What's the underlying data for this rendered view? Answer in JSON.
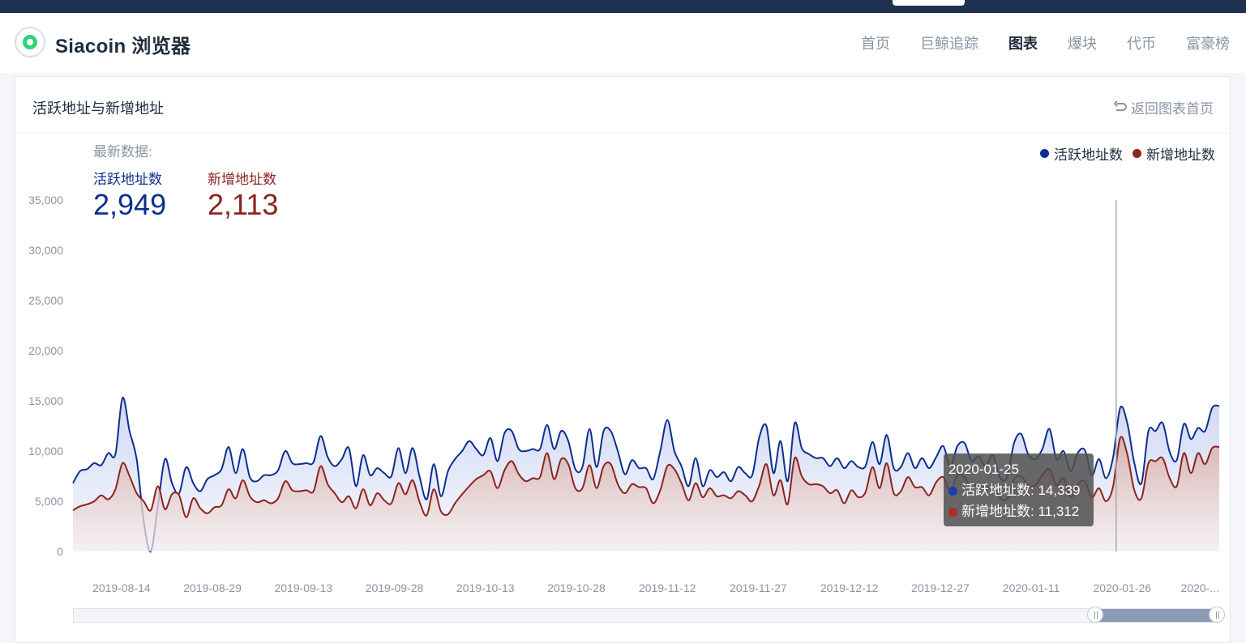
{
  "header": {
    "brand": "Siacoin 浏览器",
    "nav": [
      "首页",
      "巨鲸追踪",
      "图表",
      "爆块",
      "代币",
      "富豪榜"
    ],
    "active_nav": "图表"
  },
  "card": {
    "title": "活跃地址与新增地址",
    "back_label": "返回图表首页",
    "latest_label": "最新数据:",
    "active_label": "活跃地址数",
    "active_value": "2,949",
    "new_label": "新增地址数",
    "new_value": "2,113"
  },
  "legend": [
    "活跃地址数",
    "新增地址数"
  ],
  "tooltip": {
    "date": "2020-01-25",
    "active_text": "活跃地址数: 14,339",
    "new_text": "新增地址数: 11,312"
  },
  "colors": {
    "active": "#0d2f8c",
    "new": "#8c241f",
    "nav_dark": "#1f3350"
  },
  "chart_data": {
    "type": "area",
    "y_ticks": [
      0,
      5000,
      10000,
      15000,
      20000,
      25000,
      30000,
      35000
    ],
    "y_tick_labels": [
      "0",
      "5,000",
      "10,000",
      "15,000",
      "20,000",
      "25,000",
      "30,000",
      "35,000"
    ],
    "ylim": [
      0,
      35000
    ],
    "x_start": "2019-08-06",
    "x_end": "2020-02-01",
    "x_tick_labels": [
      "2019-08-14",
      "2019-08-29",
      "2019-09-13",
      "2019-09-28",
      "2019-10-13",
      "2019-10-28",
      "2019-11-12",
      "2019-11-27",
      "2019-12-12",
      "2019-12-27",
      "2020-01-11",
      "2020-01-26",
      "2020-..."
    ],
    "x_tick_days": [
      8,
      23,
      38,
      53,
      68,
      83,
      98,
      113,
      128,
      143,
      158,
      173,
      188
    ],
    "x_days_total": 189,
    "cursor_day": 172,
    "series": [
      {
        "name": "活跃地址数",
        "values": [
          6800,
          8000,
          8200,
          8800,
          8600,
          9800,
          9700,
          15300,
          12000,
          9200,
          3000,
          0,
          4500,
          9200,
          6800,
          5800,
          8400,
          6800,
          6000,
          7200,
          7600,
          8200,
          10400,
          7800,
          10200,
          7400,
          7000,
          7600,
          7600,
          8100,
          10000,
          8800,
          8700,
          8800,
          8900,
          11500,
          9400,
          8500,
          9200,
          10300,
          6500,
          9600,
          7600,
          8300,
          7800,
          7500,
          10300,
          7800,
          10300,
          7400,
          5200,
          8700,
          5500,
          8000,
          9200,
          10000,
          11000,
          10200,
          9600,
          11300,
          9000,
          11800,
          12000,
          10200,
          10000,
          10200,
          10200,
          12600,
          10200,
          12000,
          11000,
          8200,
          8400,
          12200,
          8400,
          12000,
          12000,
          10000,
          7700,
          9100,
          8300,
          8300,
          7200,
          10000,
          13100,
          10000,
          8500,
          6500,
          9300,
          6500,
          8100,
          7400,
          7900,
          7000,
          8400,
          7800,
          7600,
          11400,
          12500,
          7800,
          11000,
          7000,
          12800,
          10300,
          9700,
          9300,
          9300,
          8500,
          9300,
          8300,
          9000,
          8400,
          8500,
          10900,
          8700,
          11600,
          8300,
          8400,
          9800,
          8300,
          9300,
          8300,
          9400,
          10500,
          8500,
          10500,
          10800,
          9000,
          9500,
          8500,
          9600,
          7400,
          7400,
          10800,
          11700,
          9700,
          9200,
          10200,
          12200,
          9200,
          10000,
          8000,
          9800,
          10100,
          7600,
          9200,
          7300,
          9400,
          14300,
          12800,
          8800,
          6800,
          12000,
          12000,
          12800,
          9900,
          9100,
          12700,
          11200,
          12300,
          12000,
          14300,
          14500
        ],
        "color": "#0d2f8c"
      },
      {
        "name": "新增地址数",
        "values": [
          4100,
          4500,
          4700,
          5000,
          5600,
          5200,
          6200,
          8800,
          7500,
          5800,
          5000,
          4100,
          6500,
          4200,
          5700,
          5600,
          3400,
          5300,
          4300,
          3800,
          4400,
          4600,
          6200,
          5300,
          7100,
          5500,
          4900,
          5100,
          4800,
          5300,
          7000,
          6100,
          6000,
          6100,
          6000,
          8500,
          6700,
          5800,
          4900,
          5500,
          4300,
          6200,
          4600,
          5800,
          5100,
          4800,
          6800,
          5700,
          7100,
          4900,
          3600,
          6200,
          4000,
          3700,
          4800,
          5700,
          6500,
          7200,
          7600,
          8000,
          6300,
          8100,
          9000,
          7700,
          7000,
          7300,
          7400,
          9800,
          7200,
          9200,
          8700,
          6300,
          6300,
          8600,
          6300,
          8500,
          8700,
          6700,
          5800,
          6700,
          6400,
          6300,
          4800,
          6100,
          8500,
          8200,
          6800,
          5100,
          6800,
          5400,
          6300,
          5500,
          5600,
          5300,
          6000,
          5600,
          5000,
          6600,
          8700,
          5600,
          7100,
          4700,
          9300,
          7500,
          6700,
          6700,
          6500,
          5800,
          6100,
          4800,
          6100,
          5400,
          5900,
          8400,
          6300,
          8800,
          5800,
          6000,
          7400,
          6400,
          6400,
          5600,
          6900,
          7400,
          6000,
          7600,
          7400,
          6400,
          6800,
          6200,
          6600,
          5400,
          5200,
          7200,
          7500,
          6600,
          6600,
          7600,
          8200,
          6600,
          7300,
          5400,
          6700,
          7000,
          5400,
          6300,
          5000,
          6500,
          11300,
          9700,
          6100,
          5300,
          8800,
          9000,
          9300,
          7300,
          6500,
          9800,
          7800,
          9800,
          8700,
          10300,
          10400
        ],
        "color": "#8c241f"
      }
    ]
  }
}
